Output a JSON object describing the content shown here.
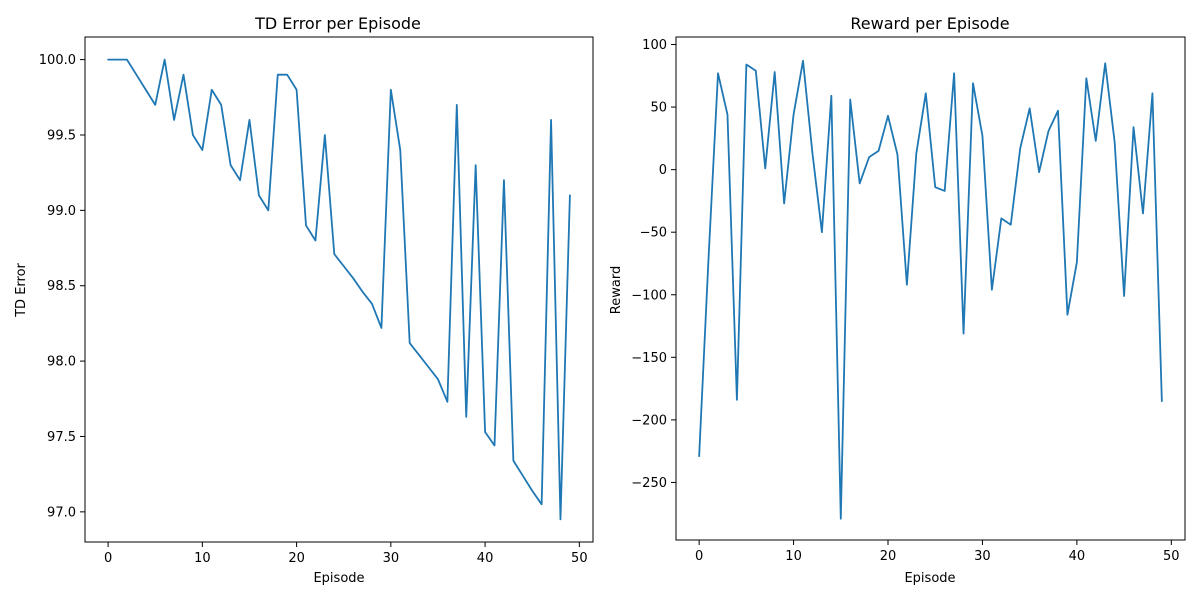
{
  "chart_data": [
    {
      "type": "line",
      "title": "TD Error per Episode",
      "xlabel": "Episode",
      "ylabel": "TD Error",
      "xlim": [
        -2.45,
        51.45
      ],
      "ylim": [
        96.8,
        100.15
      ],
      "xticks": [
        0,
        10,
        20,
        30,
        40,
        50
      ],
      "xtick_labels": [
        "0",
        "10",
        "20",
        "30",
        "40",
        "50"
      ],
      "yticks": [
        97.0,
        97.5,
        98.0,
        98.5,
        99.0,
        99.5,
        100.0
      ],
      "ytick_labels": [
        "97.0",
        "97.5",
        "98.0",
        "98.5",
        "99.0",
        "99.5",
        "100.0"
      ],
      "grid": false,
      "color": "#1f77b4",
      "series": [
        {
          "x": [
            0,
            1,
            2,
            3,
            4,
            5,
            6,
            7,
            8,
            9,
            10,
            11,
            12,
            13,
            14,
            15,
            16,
            17,
            18,
            19,
            20,
            21,
            22,
            23,
            24,
            25,
            26,
            27,
            28,
            29,
            30,
            31,
            32,
            33,
            34,
            35,
            36,
            37,
            38,
            39,
            40,
            41,
            42,
            43,
            44,
            45,
            46,
            47,
            48,
            49
          ],
          "values": [
            100.0,
            100.0,
            100.0,
            99.9,
            99.8,
            99.7,
            100.0,
            99.6,
            99.9,
            99.5,
            99.4,
            99.8,
            99.7,
            99.3,
            99.2,
            99.6,
            99.1,
            99.0,
            99.9,
            99.9,
            99.8,
            98.9,
            98.8,
            99.5,
            98.71,
            98.63,
            98.55,
            98.46,
            98.38,
            98.22,
            99.8,
            99.4,
            98.12,
            98.04,
            97.96,
            97.88,
            97.73,
            99.7,
            97.63,
            99.3,
            97.53,
            97.44,
            99.2,
            97.34,
            97.24,
            97.14,
            97.05,
            99.6,
            96.95,
            99.1
          ]
        }
      ]
    },
    {
      "type": "line",
      "title": "Reward per Episode",
      "xlabel": "Episode",
      "ylabel": "Reward",
      "xlim": [
        -2.45,
        51.45
      ],
      "ylim": [
        -296,
        106
      ],
      "xticks": [
        0,
        10,
        20,
        30,
        40,
        50
      ],
      "xtick_labels": [
        "0",
        "10",
        "20",
        "30",
        "40",
        "50"
      ],
      "yticks": [
        -250,
        -200,
        -150,
        -100,
        -50,
        0,
        50,
        100
      ],
      "ytick_labels": [
        "−250",
        "−200",
        "−150",
        "−100",
        "−50",
        "0",
        "50",
        "100"
      ],
      "grid": false,
      "color": "#1f77b4",
      "series": [
        {
          "x": [
            0,
            1,
            2,
            3,
            4,
            5,
            6,
            7,
            8,
            9,
            10,
            11,
            12,
            13,
            14,
            15,
            16,
            17,
            18,
            19,
            20,
            21,
            22,
            23,
            24,
            25,
            26,
            27,
            28,
            29,
            30,
            31,
            32,
            33,
            34,
            35,
            36,
            37,
            38,
            39,
            40,
            41,
            42,
            43,
            44,
            45,
            46,
            47,
            48,
            49
          ],
          "values": [
            -229,
            -70,
            77,
            44,
            -184,
            84,
            79,
            1,
            78,
            -27,
            44,
            87,
            13,
            -50,
            59,
            -279,
            56,
            -11,
            10,
            15,
            43,
            12,
            -92,
            13,
            61,
            -14,
            -17,
            77,
            -131,
            69,
            27,
            -96,
            -39,
            -44,
            17,
            49,
            -2,
            31,
            47,
            -116,
            -74,
            73,
            23,
            85,
            22,
            -101,
            34,
            -35,
            61,
            -185
          ]
        }
      ]
    }
  ]
}
